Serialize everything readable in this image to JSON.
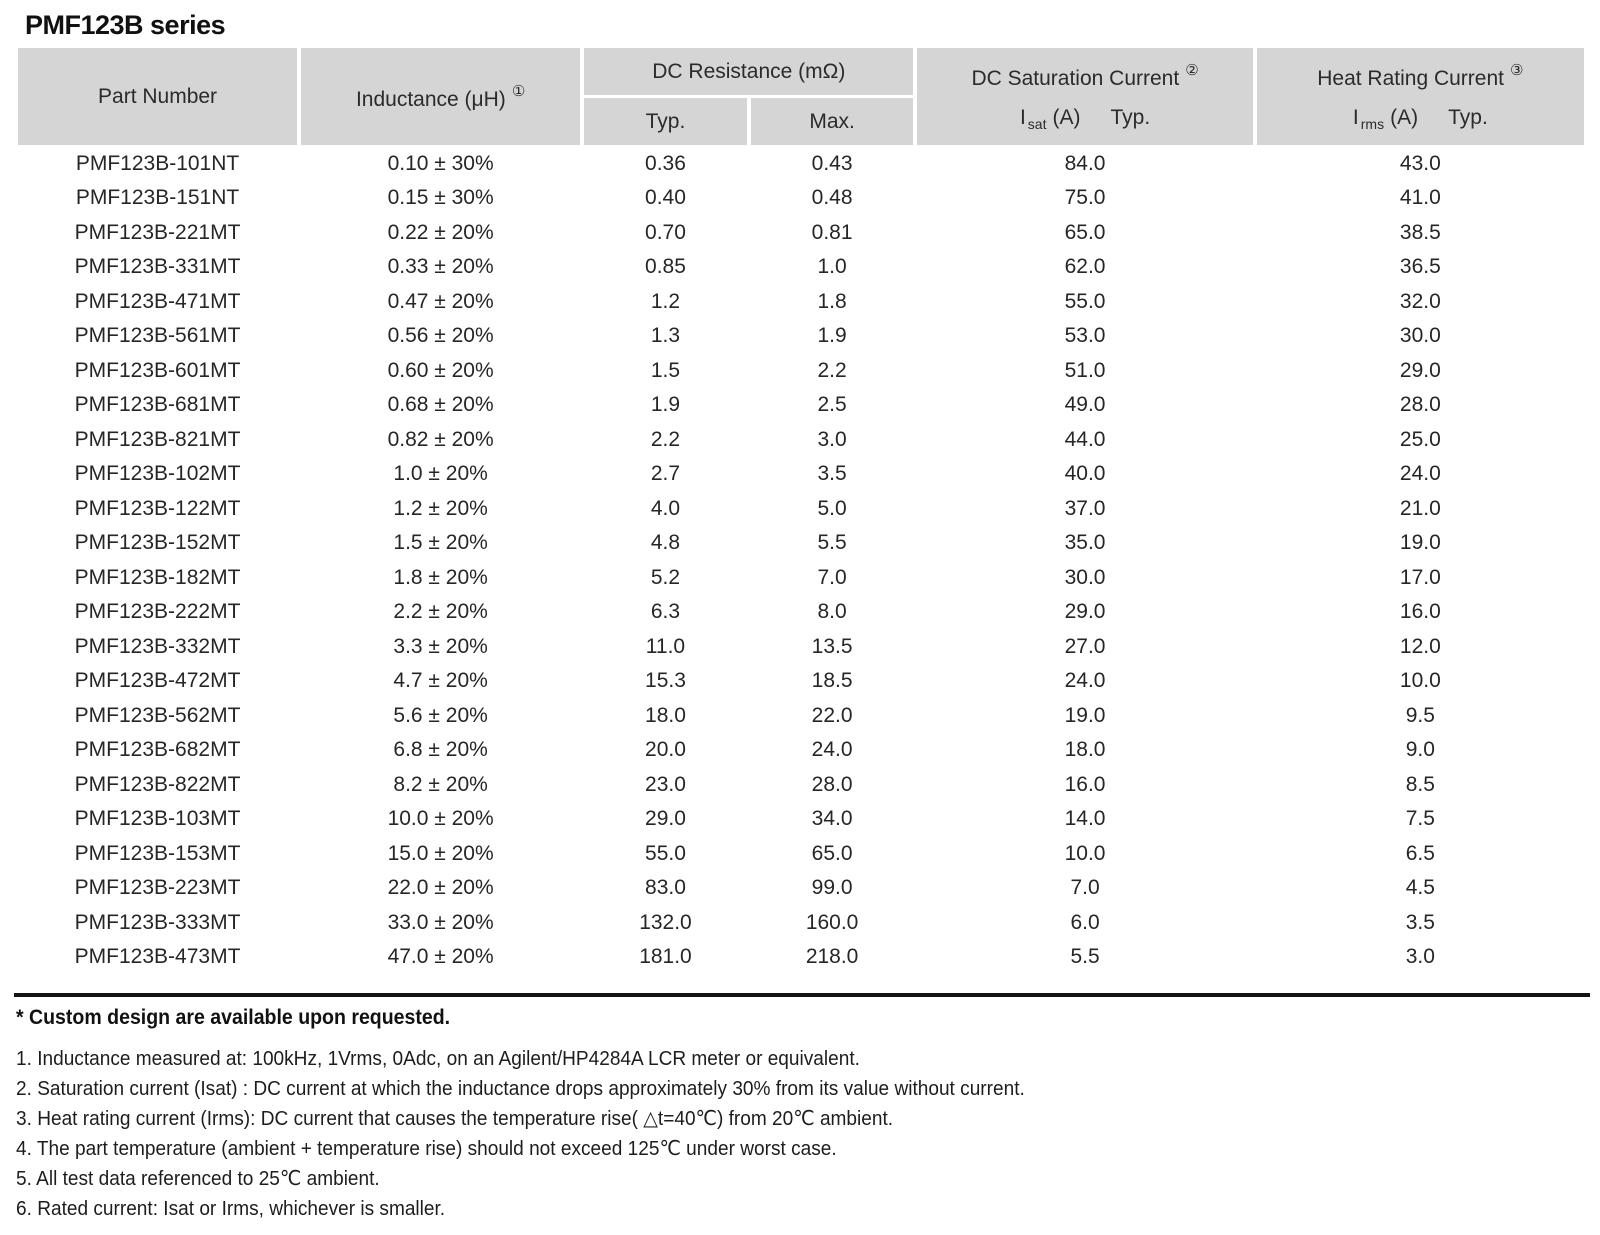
{
  "page_title": "PMF123B series",
  "table": {
    "header": {
      "part_number": "Part Number",
      "inductance_label": "Inductance (μH)",
      "inductance_footnote_ref": "①",
      "dc_resistance_label": "DC Resistance (mΩ)",
      "dc_resistance_typ": "Typ.",
      "dc_resistance_max": "Max.",
      "dc_saturation_label": "DC Saturation Current",
      "dc_saturation_footnote_ref": "②",
      "dc_saturation_symbol": "I",
      "dc_saturation_symbol_sub": "sat",
      "dc_saturation_unit": "(A)",
      "dc_saturation_typ": "Typ.",
      "heat_rating_label": "Heat Rating Current",
      "heat_rating_footnote_ref": "③",
      "heat_rating_symbol": "I",
      "heat_rating_symbol_sub": "rms",
      "heat_rating_unit": "(A)",
      "heat_rating_typ": "Typ."
    },
    "rows": [
      [
        "PMF123B-101NT",
        "0.10 ± 30%",
        "0.36",
        "0.43",
        "84.0",
        "43.0"
      ],
      [
        "PMF123B-151NT",
        "0.15 ± 30%",
        "0.40",
        "0.48",
        "75.0",
        "41.0"
      ],
      [
        "PMF123B-221MT",
        "0.22 ± 20%",
        "0.70",
        "0.81",
        "65.0",
        "38.5"
      ],
      [
        "PMF123B-331MT",
        "0.33 ± 20%",
        "0.85",
        "1.0",
        "62.0",
        "36.5"
      ],
      [
        "PMF123B-471MT",
        "0.47 ± 20%",
        "1.2",
        "1.8",
        "55.0",
        "32.0"
      ],
      [
        "PMF123B-561MT",
        "0.56 ± 20%",
        "1.3",
        "1.9",
        "53.0",
        "30.0"
      ],
      [
        "PMF123B-601MT",
        "0.60 ± 20%",
        "1.5",
        "2.2",
        "51.0",
        "29.0"
      ],
      [
        "PMF123B-681MT",
        "0.68 ± 20%",
        "1.9",
        "2.5",
        "49.0",
        "28.0"
      ],
      [
        "PMF123B-821MT",
        "0.82 ± 20%",
        "2.2",
        "3.0",
        "44.0",
        "25.0"
      ],
      [
        "PMF123B-102MT",
        "1.0 ± 20%",
        "2.7",
        "3.5",
        "40.0",
        "24.0"
      ],
      [
        "PMF123B-122MT",
        "1.2 ± 20%",
        "4.0",
        "5.0",
        "37.0",
        "21.0"
      ],
      [
        "PMF123B-152MT",
        "1.5 ± 20%",
        "4.8",
        "5.5",
        "35.0",
        "19.0"
      ],
      [
        "PMF123B-182MT",
        "1.8 ± 20%",
        "5.2",
        "7.0",
        "30.0",
        "17.0"
      ],
      [
        "PMF123B-222MT",
        "2.2 ± 20%",
        "6.3",
        "8.0",
        "29.0",
        "16.0"
      ],
      [
        "PMF123B-332MT",
        "3.3 ± 20%",
        "11.0",
        "13.5",
        "27.0",
        "12.0"
      ],
      [
        "PMF123B-472MT",
        "4.7 ± 20%",
        "15.3",
        "18.5",
        "24.0",
        "10.0"
      ],
      [
        "PMF123B-562MT",
        "5.6 ± 20%",
        "18.0",
        "22.0",
        "19.0",
        "9.5"
      ],
      [
        "PMF123B-682MT",
        "6.8 ± 20%",
        "20.0",
        "24.0",
        "18.0",
        "9.0"
      ],
      [
        "PMF123B-822MT",
        "8.2 ± 20%",
        "23.0",
        "28.0",
        "16.0",
        "8.5"
      ],
      [
        "PMF123B-103MT",
        "10.0 ± 20%",
        "29.0",
        "34.0",
        "14.0",
        "7.5"
      ],
      [
        "PMF123B-153MT",
        "15.0 ± 20%",
        "55.0",
        "65.0",
        "10.0",
        "6.5"
      ],
      [
        "PMF123B-223MT",
        "22.0 ± 20%",
        "83.0",
        "99.0",
        "7.0",
        "4.5"
      ],
      [
        "PMF123B-333MT",
        "33.0 ± 20%",
        "132.0",
        "160.0",
        "6.0",
        "3.5"
      ],
      [
        "PMF123B-473MT",
        "47.0 ± 20%",
        "181.0",
        "218.0",
        "5.5",
        "3.0"
      ]
    ]
  },
  "notes": {
    "custom_design": "* Custom design are available upon requested.",
    "items": [
      "1. Inductance measured at: 100kHz, 1Vrms, 0Adc, on an Agilent/HP4284A LCR meter or equivalent.",
      "2. Saturation current (Isat) : DC current at which the inductance drops approximately 30% from its value without current.",
      "3. Heat rating current (Irms): DC current that causes the temperature rise( △t=40℃) from 20℃ ambient.",
      "4. The part temperature (ambient + temperature rise) should not exceed 125℃ under worst case.",
      "5. All test data referenced to 25℃ ambient.",
      "6. Rated current: Isat or Irms, whichever is smaller."
    ]
  },
  "colors": {
    "header_bg": "#d5d5d5",
    "text": "#222222",
    "divider": "#141414"
  }
}
